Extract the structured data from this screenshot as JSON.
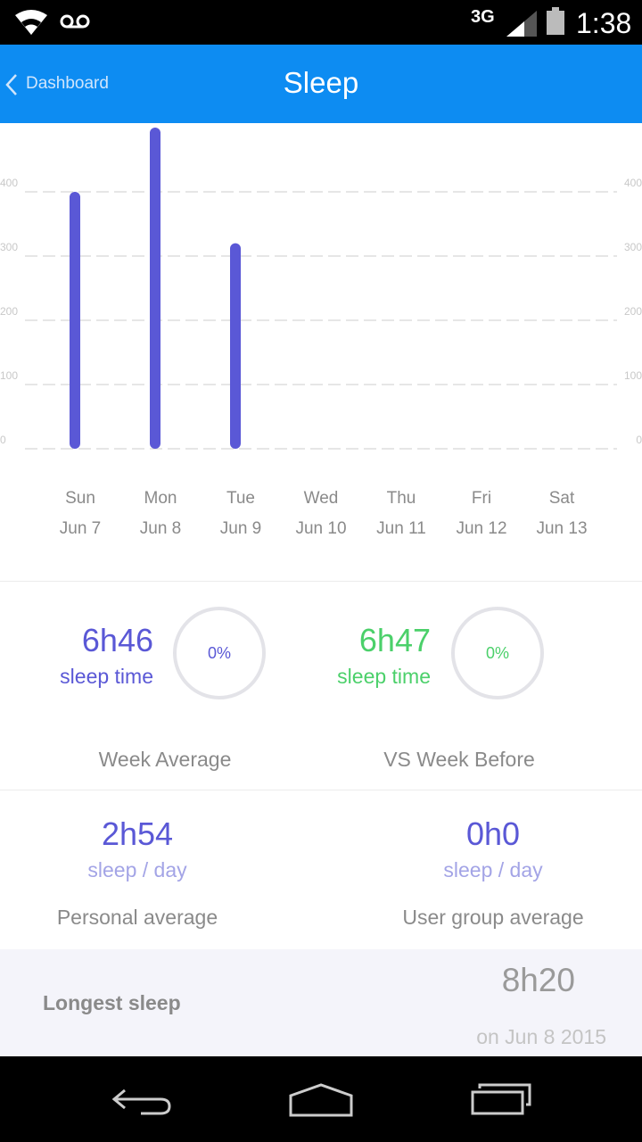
{
  "status_bar": {
    "network": "3G",
    "time": "1:38",
    "icons": [
      "wifi-icon",
      "voicemail-icon",
      "signal-icon",
      "battery-icon"
    ]
  },
  "app_bar": {
    "back_label": "Dashboard",
    "title": "Sleep"
  },
  "chart_data": {
    "type": "bar",
    "categories": [
      "Sun",
      "Mon",
      "Tue",
      "Wed",
      "Thu",
      "Fri",
      "Sat"
    ],
    "dates": [
      "Jun 7",
      "Jun 8",
      "Jun 9",
      "Jun 10",
      "Jun 11",
      "Jun 12",
      "Jun 13"
    ],
    "values": [
      400,
      500,
      320,
      0,
      0,
      0,
      0
    ],
    "yticks": [
      "0",
      "100",
      "200",
      "300",
      "400"
    ],
    "ylim": [
      0,
      500
    ],
    "grid": true,
    "bar_color": "#5a58d6"
  },
  "stats": {
    "week_average": {
      "value": "6h46",
      "sub": "sleep time",
      "percent": "0%",
      "caption": "Week Average"
    },
    "vs_week_before": {
      "value": "6h47",
      "sub": "sleep time",
      "percent": "0%",
      "caption": "VS Week Before"
    },
    "personal_average": {
      "value": "2h54",
      "sub": "sleep / day",
      "caption": "Personal average"
    },
    "group_average": {
      "value": "0h0",
      "sub": "sleep / day",
      "caption": "User group average"
    }
  },
  "longest": {
    "label": "Longest sleep",
    "value": "8h20",
    "date": "on Jun 8 2015"
  },
  "colors": {
    "app_bar": "#0d8cf2",
    "purple": "#5a58d6",
    "green": "#4bd06a"
  }
}
